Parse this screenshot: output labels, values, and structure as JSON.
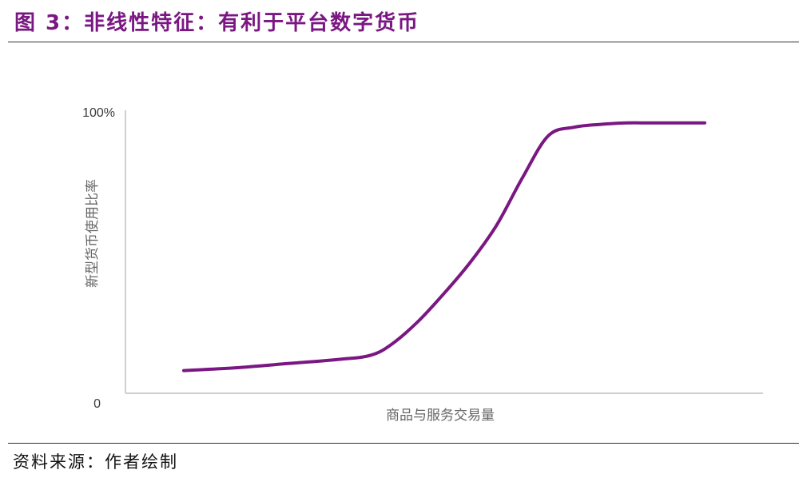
{
  "figure": {
    "title": "图 3：非线性特征：有利于平台数字货币",
    "source": "资料来源：作者绘制",
    "title_color": "#7a1782"
  },
  "chart_data": {
    "type": "line",
    "xlabel": "商品与服务交易量",
    "ylabel": "新型货币使用比率",
    "y_ticks": [
      "100%",
      "0"
    ],
    "ylim": [
      0,
      100
    ],
    "xlim": [
      0,
      100
    ],
    "grid": false,
    "line_color": "#7a1782",
    "series": [
      {
        "x": [
          0,
          10,
          20,
          30,
          36,
          40,
          45,
          50,
          55,
          60,
          65,
          70,
          75,
          80,
          85,
          90,
          100
        ],
        "values": [
          7.5,
          8.5,
          10,
          11.5,
          13,
          17,
          25,
          35,
          46,
          59,
          76,
          91,
          94,
          95,
          95.5,
          95.5,
          95.5
        ]
      }
    ]
  }
}
